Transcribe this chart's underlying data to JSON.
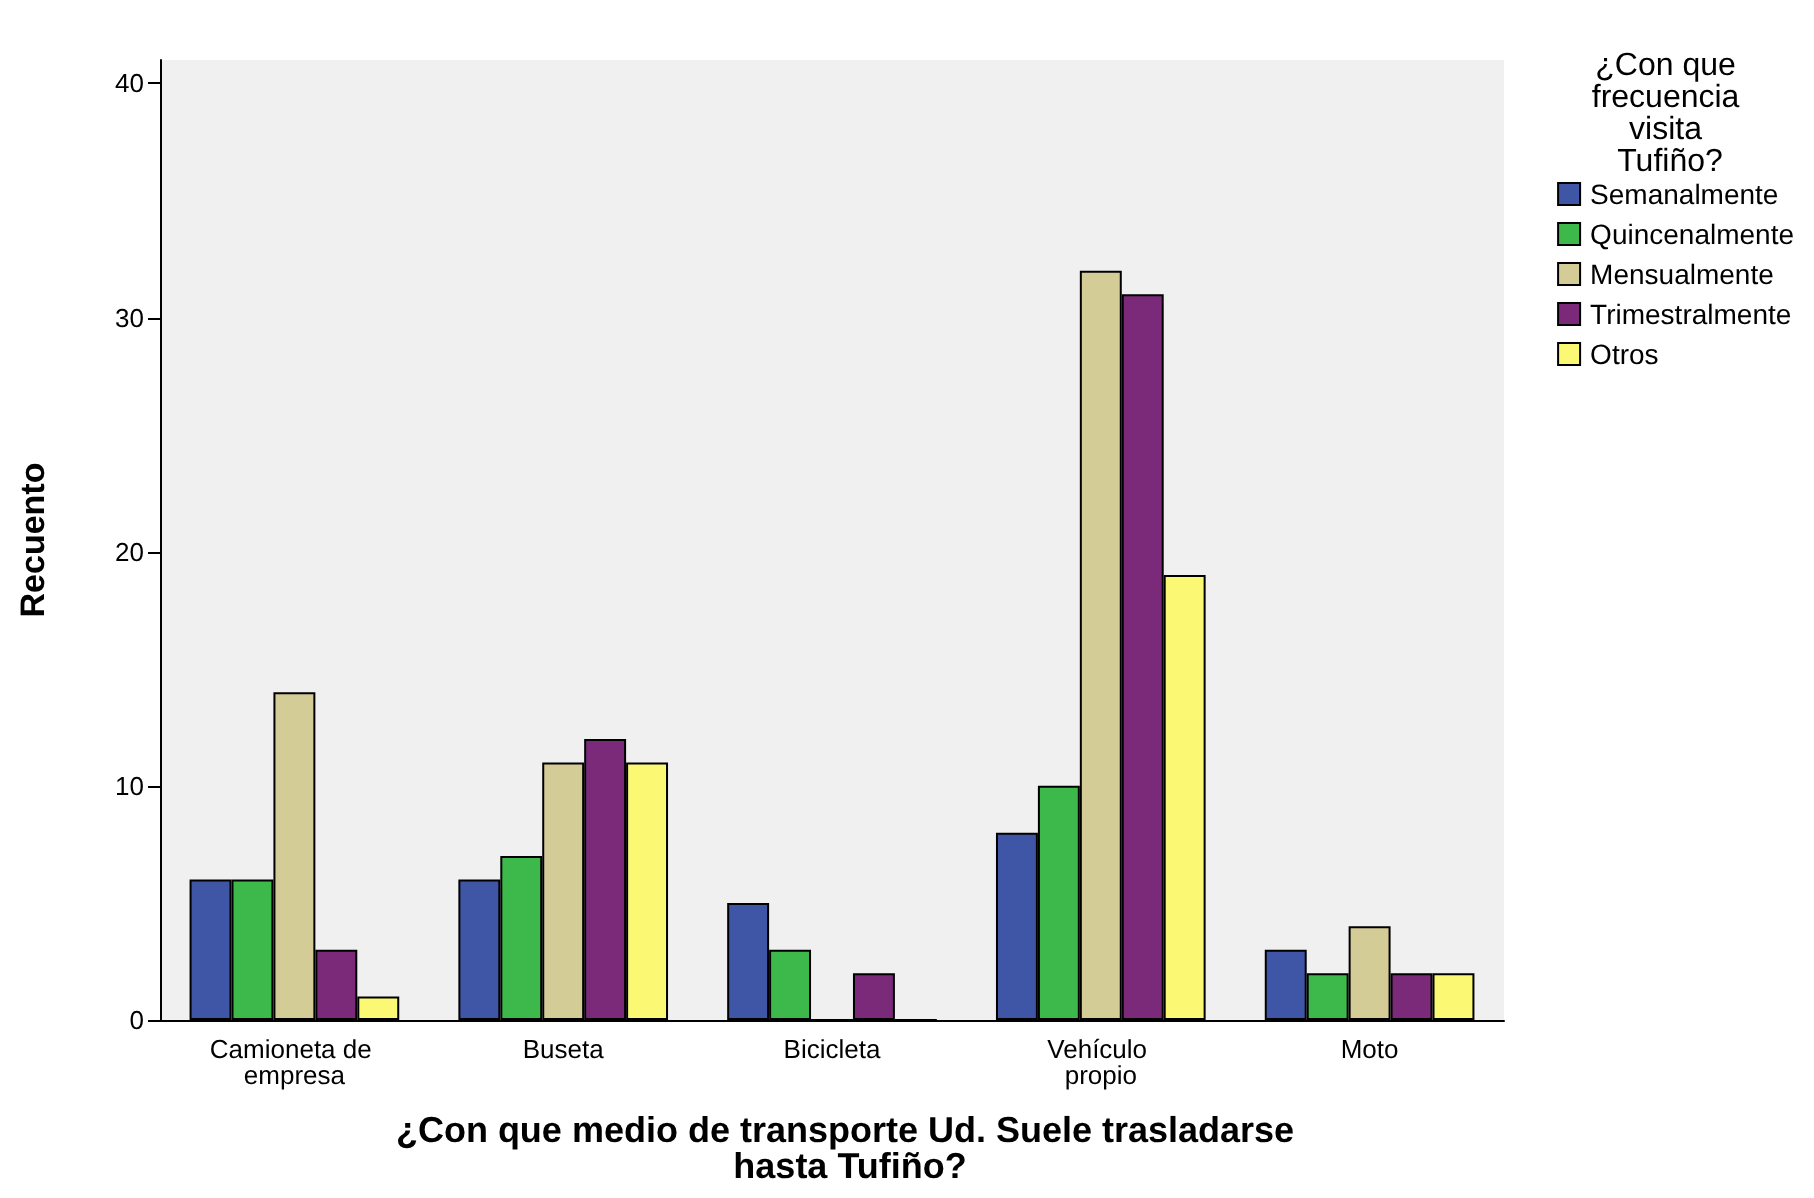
{
  "chart_data": {
    "type": "bar",
    "xlabel": "¿Con que medio de transporte Ud. Suele trasladarse hasta Tufiño?",
    "ylabel": "Recuento",
    "legend_title": "¿Con que frecuencia visita Tufiño?",
    "categories": [
      "Camioneta de empresa",
      "Buseta",
      "Bicicleta",
      "Vehículo propio",
      "Moto"
    ],
    "series": [
      {
        "name": "Semanalmente",
        "color": "#3f55a5",
        "values": [
          6,
          6,
          5,
          8,
          3
        ]
      },
      {
        "name": "Quincenalmente",
        "color": "#3cb94a",
        "values": [
          6,
          7,
          3,
          10,
          2
        ]
      },
      {
        "name": "Mensualmente",
        "color": "#d4cc97",
        "values": [
          14,
          11,
          0,
          32,
          4
        ]
      },
      {
        "name": "Trimestralmente",
        "color": "#7b2a7a",
        "values": [
          3,
          12,
          2,
          31,
          2
        ]
      },
      {
        "name": "Otros",
        "color": "#fbf873",
        "values": [
          1,
          11,
          0,
          19,
          2
        ]
      }
    ],
    "ylim": [
      0,
      41
    ],
    "yticks": [
      0,
      10,
      20,
      30,
      40
    ],
    "grid": false,
    "legend": "right"
  }
}
